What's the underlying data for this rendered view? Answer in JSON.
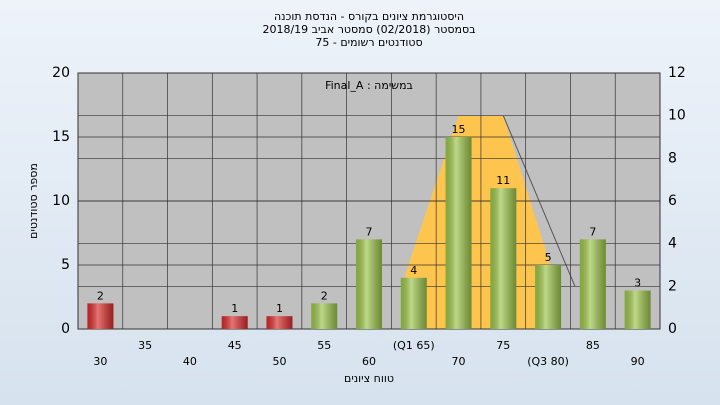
{
  "chart_data": {
    "type": "bar",
    "title": [
      "היסטוגרמת ציונים בקורס - הנדסת תוכנה",
      "בסמסטר  (02/2018)  סמסטר אביב 2018/19",
      "סטודנטים רשומים - 75"
    ],
    "annotation": "במשימה : Final_A",
    "xlabel": "טווח ציונים",
    "ylabel": "מספר סטודנטים",
    "categories": [
      "30",
      "35",
      "40",
      "45",
      "50",
      "55",
      "60",
      "(Q1 65)",
      "70",
      "75",
      "(Q3 80)",
      "85",
      "90"
    ],
    "values": [
      2,
      null,
      null,
      1,
      1,
      2,
      7,
      4,
      15,
      11,
      5,
      7,
      3
    ],
    "colors": [
      "#d92b2b",
      null,
      null,
      "#d92b2b",
      "#d92b2b",
      "#9cc44a",
      "#9cc44a",
      "#9cc44a",
      "#9cc44a",
      "#9cc44a",
      "#9cc44a",
      "#9cc44a",
      "#9cc44a"
    ],
    "ylim": [
      0,
      20
    ],
    "yticks": [
      0,
      5,
      10,
      15,
      20
    ],
    "y2lim": [
      0,
      12
    ],
    "y2ticks": [
      0,
      2,
      4,
      6,
      8,
      10,
      12
    ],
    "overlay": {
      "x": [
        64,
        70,
        75,
        81
      ],
      "values": [
        2.5,
        10,
        10,
        2
      ],
      "color": "#fdc54e",
      "axis": "y2"
    },
    "line": {
      "x": [
        75,
        83
      ],
      "values": [
        10,
        2
      ],
      "color": "#555555",
      "axis": "y2"
    },
    "grid": true
  }
}
